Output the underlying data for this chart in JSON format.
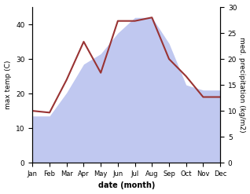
{
  "months": [
    "Jan",
    "Feb",
    "Mar",
    "Apr",
    "May",
    "Jun",
    "Jul",
    "Aug",
    "Sep",
    "Oct",
    "Nov",
    "Dec"
  ],
  "max_temp": [
    15,
    14.5,
    24,
    35,
    26,
    41,
    41,
    42,
    30,
    25,
    19,
    19
  ],
  "temp_color": "#993333",
  "precip_fill_color": "#c0c8f0",
  "background_color": "#ffffff",
  "ylabel_left": "max temp (C)",
  "ylabel_right": "med. precipitation (kg/m2)",
  "xlabel": "date (month)",
  "ylim_left": [
    0,
    45
  ],
  "ylim_right": [
    0,
    30
  ],
  "yticks_left": [
    0,
    10,
    20,
    30,
    40
  ],
  "yticks_right": [
    0,
    5,
    10,
    15,
    20,
    25,
    30
  ],
  "precip_scale": 0.6667
}
